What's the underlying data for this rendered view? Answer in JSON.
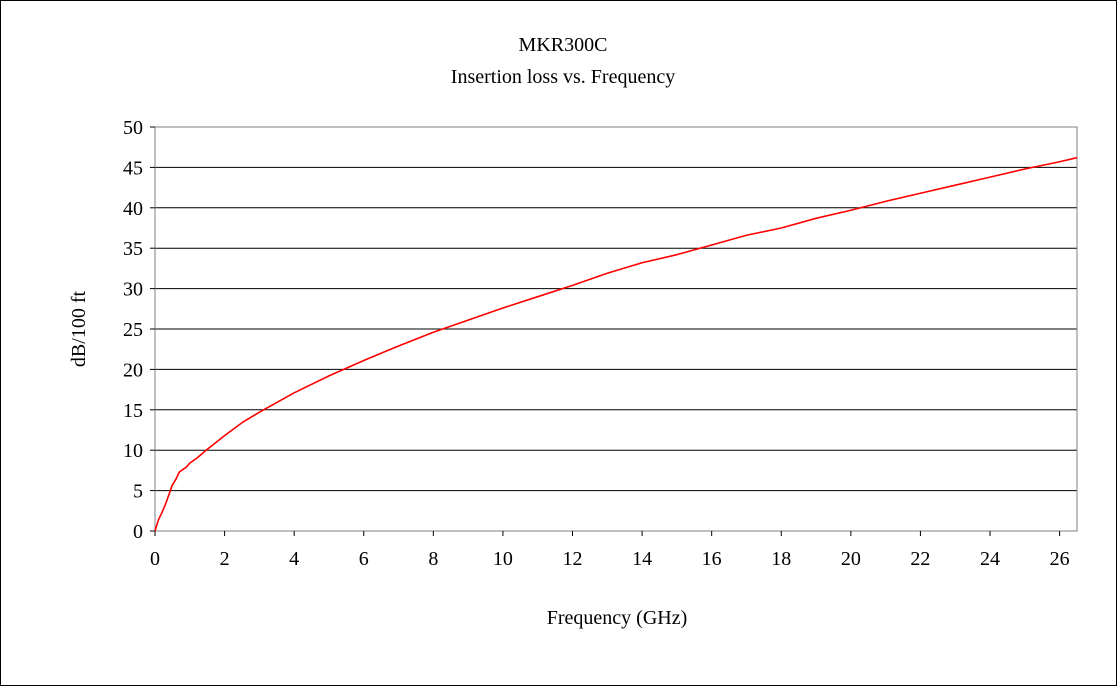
{
  "chart_data": {
    "type": "line",
    "title": "MKR300C",
    "subtitle": "Insertion loss vs. Frequency",
    "xlabel": "Frequency (GHz)",
    "ylabel": "dB/100 ft",
    "xlim": [
      0,
      26.5
    ],
    "ylim": [
      0,
      50
    ],
    "x_ticks": [
      0,
      2,
      4,
      6,
      8,
      10,
      12,
      14,
      16,
      18,
      20,
      22,
      24,
      26
    ],
    "y_ticks": [
      0,
      5,
      10,
      15,
      20,
      25,
      30,
      35,
      40,
      45,
      50
    ],
    "grid": "horizontal",
    "legend": "none",
    "series": [
      {
        "color": "#ff0000",
        "points": [
          [
            0,
            0
          ],
          [
            0.1,
            1.4
          ],
          [
            0.2,
            2.3
          ],
          [
            0.3,
            3.3
          ],
          [
            0.4,
            4.5
          ],
          [
            0.5,
            5.7
          ],
          [
            0.6,
            6.4
          ],
          [
            0.7,
            7.3
          ],
          [
            0.8,
            7.6
          ],
          [
            0.9,
            7.9
          ],
          [
            1.0,
            8.4
          ],
          [
            1.2,
            9.0
          ],
          [
            1.5,
            10.1
          ],
          [
            2.0,
            11.8
          ],
          [
            2.5,
            13.4
          ],
          [
            3.0,
            14.7
          ],
          [
            4.0,
            17.1
          ],
          [
            5.0,
            19.2
          ],
          [
            6.0,
            21.1
          ],
          [
            7.0,
            22.9
          ],
          [
            8.0,
            24.6
          ],
          [
            9.0,
            26.1
          ],
          [
            10.0,
            27.6
          ],
          [
            11.0,
            29.0
          ],
          [
            12.0,
            30.4
          ],
          [
            13.0,
            31.9
          ],
          [
            14.0,
            33.2
          ],
          [
            15.0,
            34.2
          ],
          [
            16.0,
            35.4
          ],
          [
            17.0,
            36.6
          ],
          [
            18.0,
            37.5
          ],
          [
            19.0,
            38.7
          ],
          [
            20.0,
            39.7
          ],
          [
            21.0,
            40.8
          ],
          [
            22.0,
            41.8
          ],
          [
            23.0,
            42.8
          ],
          [
            24.0,
            43.8
          ],
          [
            25.0,
            44.8
          ],
          [
            26.0,
            45.7
          ],
          [
            26.5,
            46.2
          ]
        ]
      }
    ]
  }
}
